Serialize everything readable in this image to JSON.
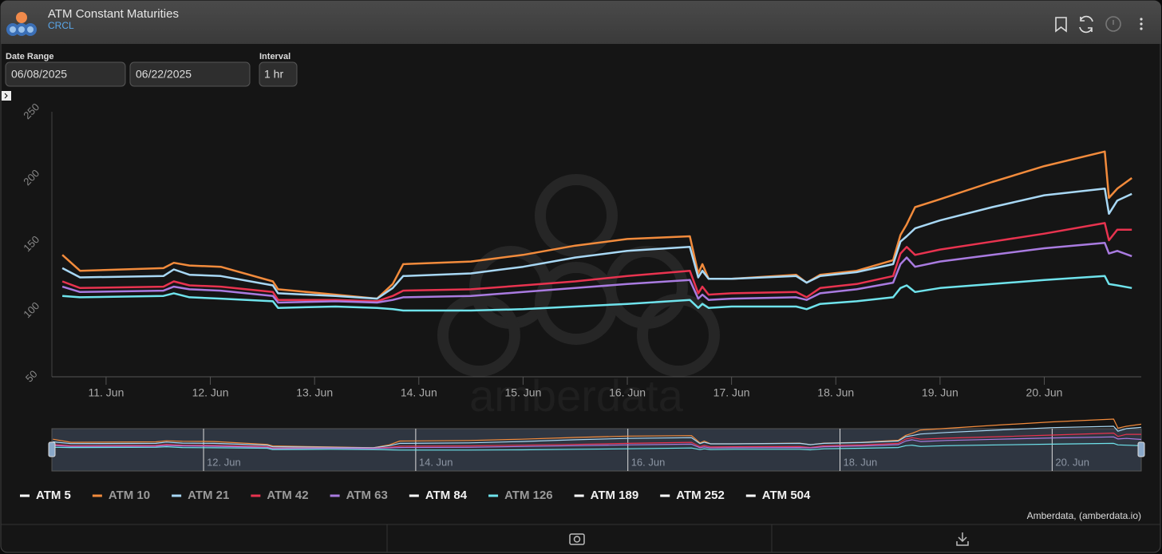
{
  "header": {
    "title": "ATM Constant Maturities",
    "subtitle": "CRCL"
  },
  "controls": {
    "date_range_label": "Date Range",
    "start_date": "06/08/2025",
    "end_date": "06/22/2025",
    "interval_label": "Interval",
    "interval": "1 hr"
  },
  "chart_data": {
    "type": "line",
    "watermark": "amberdata",
    "credits": "Amberdata, (amberdata.io)",
    "x": [
      10.58,
      10.75,
      11.55,
      11.65,
      11.8,
      12.1,
      12.6,
      12.65,
      13.2,
      13.6,
      13.75,
      13.85,
      14.5,
      15.0,
      15.5,
      16.0,
      16.6,
      16.68,
      16.72,
      16.78,
      17.0,
      17.62,
      17.72,
      17.85,
      18.2,
      18.55,
      18.62,
      18.68,
      18.76,
      19.0,
      19.5,
      20.0,
      20.58,
      20.62,
      20.7,
      20.84
    ],
    "xlim": [
      10.48,
      20.93
    ],
    "xticks": [
      {
        "value": 11,
        "label": "11. Jun"
      },
      {
        "value": 12,
        "label": "12. Jun"
      },
      {
        "value": 13,
        "label": "13. Jun"
      },
      {
        "value": 14,
        "label": "14. Jun"
      },
      {
        "value": 15,
        "label": "15. Jun"
      },
      {
        "value": 16,
        "label": "16. Jun"
      },
      {
        "value": 17,
        "label": "17. Jun"
      },
      {
        "value": 18,
        "label": "18. Jun"
      },
      {
        "value": 19,
        "label": "19. Jun"
      },
      {
        "value": 20,
        "label": "20. Jun"
      }
    ],
    "ylim": [
      50,
      250
    ],
    "yticks": [
      50,
      100,
      150,
      200,
      250
    ],
    "grid": false,
    "navigator": {
      "xlim": [
        10.57,
        20.84
      ],
      "xticks": [
        {
          "value": 12,
          "label": "12. Jun"
        },
        {
          "value": 14,
          "label": "14. Jun"
        },
        {
          "value": 16,
          "label": "16. Jun"
        },
        {
          "value": 18,
          "label": "18. Jun"
        },
        {
          "value": 20,
          "label": "20. Jun"
        }
      ]
    },
    "series": [
      {
        "name": "ATM 5",
        "color": "#ffffff",
        "hidden": true,
        "values": [
          null,
          null,
          null,
          null,
          null,
          null,
          null,
          null,
          null,
          null,
          null,
          null,
          null,
          null,
          null,
          null,
          null,
          null,
          null,
          null,
          null,
          null,
          null,
          null,
          null,
          null,
          null,
          null,
          null,
          null,
          null,
          null,
          null,
          null,
          null,
          null
        ]
      },
      {
        "name": "ATM 10",
        "color": "#f28b3c",
        "hidden": false,
        "values": [
          142,
          130,
          132,
          136,
          134,
          133,
          122,
          116,
          112,
          109,
          120,
          135,
          137,
          142,
          149,
          154,
          156,
          128,
          135,
          124,
          124,
          127,
          121,
          127,
          130,
          138,
          157,
          165,
          178,
          184,
          197,
          209,
          220,
          185,
          192,
          200
        ]
      },
      {
        "name": "ATM 21",
        "color": "#a8d8f5",
        "hidden": false,
        "values": [
          132,
          125,
          126,
          131,
          127,
          126,
          119,
          113,
          111,
          109,
          117,
          126,
          128,
          133,
          140,
          145,
          148,
          125,
          130,
          124,
          124,
          126,
          121,
          126,
          129,
          135,
          152,
          156,
          162,
          168,
          178,
          187,
          192,
          173,
          183,
          188
        ]
      },
      {
        "name": "ATM 42",
        "color": "#e8334f",
        "hidden": false,
        "values": [
          122,
          117,
          118,
          122,
          119,
          118,
          114,
          108,
          108,
          107,
          111,
          115,
          116,
          119,
          122,
          126,
          130,
          113,
          118,
          112,
          113,
          114,
          110,
          117,
          120,
          126,
          143,
          148,
          142,
          146,
          152,
          158,
          166,
          153,
          161,
          161
        ]
      },
      {
        "name": "ATM 63",
        "color": "#a97be0",
        "hidden": false,
        "values": [
          118,
          114,
          115,
          118,
          116,
          115,
          111,
          106,
          107,
          106,
          108,
          110,
          111,
          114,
          117,
          120,
          123,
          109,
          112,
          108,
          109,
          110,
          108,
          113,
          116,
          121,
          135,
          140,
          133,
          137,
          142,
          147,
          151,
          143,
          145,
          141
        ]
      },
      {
        "name": "ATM 84",
        "color": "#ffffff",
        "hidden": true,
        "values": [
          null,
          null,
          null,
          null,
          null,
          null,
          null,
          null,
          null,
          null,
          null,
          null,
          null,
          null,
          null,
          null,
          null,
          null,
          null,
          null,
          null,
          null,
          null,
          null,
          null,
          null,
          null,
          null,
          null,
          null,
          null,
          null,
          null,
          null,
          null,
          null
        ]
      },
      {
        "name": "ATM 126",
        "color": "#6fe3ec",
        "hidden": false,
        "values": [
          111,
          110,
          111,
          113,
          110,
          109,
          107,
          102,
          103,
          102,
          101,
          100,
          100,
          101,
          103,
          105,
          108,
          102,
          105,
          102,
          103,
          103,
          101,
          105,
          107,
          110,
          117,
          119,
          114,
          117,
          120,
          123,
          126,
          120,
          119,
          117
        ]
      },
      {
        "name": "ATM 189",
        "color": "#ffffff",
        "hidden": true,
        "values": [
          null,
          null,
          null,
          null,
          null,
          null,
          null,
          null,
          null,
          null,
          null,
          null,
          null,
          null,
          null,
          null,
          null,
          null,
          null,
          null,
          null,
          null,
          null,
          null,
          null,
          null,
          null,
          null,
          null,
          null,
          null,
          null,
          null,
          null,
          null,
          null
        ]
      },
      {
        "name": "ATM 252",
        "color": "#ffffff",
        "hidden": true,
        "values": [
          null,
          null,
          null,
          null,
          null,
          null,
          null,
          null,
          null,
          null,
          null,
          null,
          null,
          null,
          null,
          null,
          null,
          null,
          null,
          null,
          null,
          null,
          null,
          null,
          null,
          null,
          null,
          null,
          null,
          null,
          null,
          null,
          null,
          null,
          null,
          null
        ]
      },
      {
        "name": "ATM 504",
        "color": "#ffffff",
        "hidden": true,
        "values": [
          null,
          null,
          null,
          null,
          null,
          null,
          null,
          null,
          null,
          null,
          null,
          null,
          null,
          null,
          null,
          null,
          null,
          null,
          null,
          null,
          null,
          null,
          null,
          null,
          null,
          null,
          null,
          null,
          null,
          null,
          null,
          null,
          null,
          null,
          null,
          null
        ]
      }
    ]
  }
}
